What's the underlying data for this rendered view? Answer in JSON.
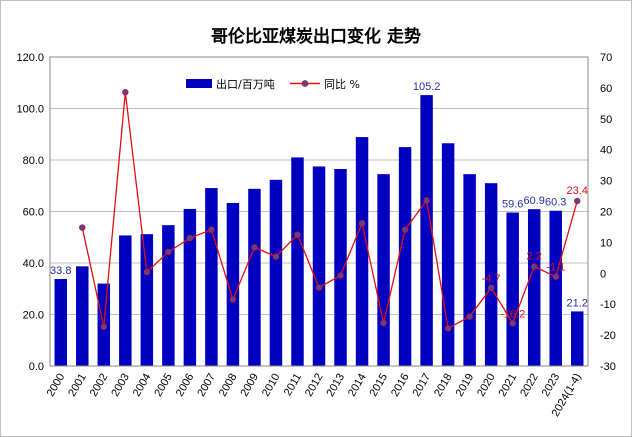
{
  "chart_data": {
    "type": "bar",
    "title": "哥伦比亚煤炭出口变化 走势",
    "categories": [
      "2000",
      "2001",
      "2002",
      "2003",
      "2004",
      "2005",
      "2006",
      "2007",
      "2008",
      "2009",
      "2010",
      "2011",
      "2012",
      "2013",
      "2014",
      "2015",
      "2016",
      "2017",
      "2018",
      "2019",
      "2020",
      "2021",
      "2022",
      "2023",
      "2024(1-4)"
    ],
    "series": [
      {
        "name": "出口/百万吨",
        "axis": "left",
        "kind": "bar",
        "color": "#0000c0",
        "values": [
          33.8,
          38.7,
          32.0,
          50.7,
          51.2,
          54.7,
          61.0,
          69.1,
          63.3,
          68.8,
          72.3,
          81.0,
          77.5,
          76.5,
          88.9,
          74.5,
          85.0,
          105.2,
          86.5,
          74.5,
          71.0,
          59.6,
          60.9,
          60.3,
          21.2
        ]
      },
      {
        "name": "同比 %",
        "axis": "right",
        "kind": "line",
        "color": "#e01010",
        "marker_color": "#4a4a9a",
        "values": [
          null,
          14.8,
          -17.3,
          58.6,
          0.4,
          6.9,
          11.4,
          14.1,
          -8.5,
          8.4,
          5.4,
          12.5,
          -4.6,
          -0.7,
          16.2,
          -16.1,
          14.1,
          23.6,
          -17.8,
          -14.0,
          -4.7,
          -16.2,
          2.2,
          -1.1,
          23.4
        ]
      }
    ],
    "bar_value_labels": [
      {
        "index": 0,
        "text": "33.8"
      },
      {
        "index": 17,
        "text": "105.2"
      },
      {
        "index": 21,
        "text": "59.6"
      },
      {
        "index": 22,
        "text": "60.9"
      },
      {
        "index": 23,
        "text": "60.3"
      },
      {
        "index": 24,
        "text": "21.2"
      }
    ],
    "yoy_value_labels": [
      {
        "index": 20,
        "text": "-4.7"
      },
      {
        "index": 21,
        "text": "-16.2"
      },
      {
        "index": 22,
        "text": "2.2"
      },
      {
        "index": 23,
        "text": "-1.1"
      },
      {
        "index": 24,
        "text": "23.4"
      }
    ],
    "left_axis": {
      "min": 0,
      "max": 120,
      "step": 20,
      "tick_labels": [
        "0.0",
        "20.0",
        "40.0",
        "60.0",
        "80.0",
        "100.0",
        "120.0"
      ]
    },
    "right_axis": {
      "min": -30,
      "max": 70,
      "step": 10,
      "tick_labels": [
        "-30",
        "-20",
        "-10",
        "0",
        "10",
        "20",
        "30",
        "40",
        "50",
        "60",
        "70"
      ]
    },
    "grid": true,
    "legend": "top-center"
  }
}
